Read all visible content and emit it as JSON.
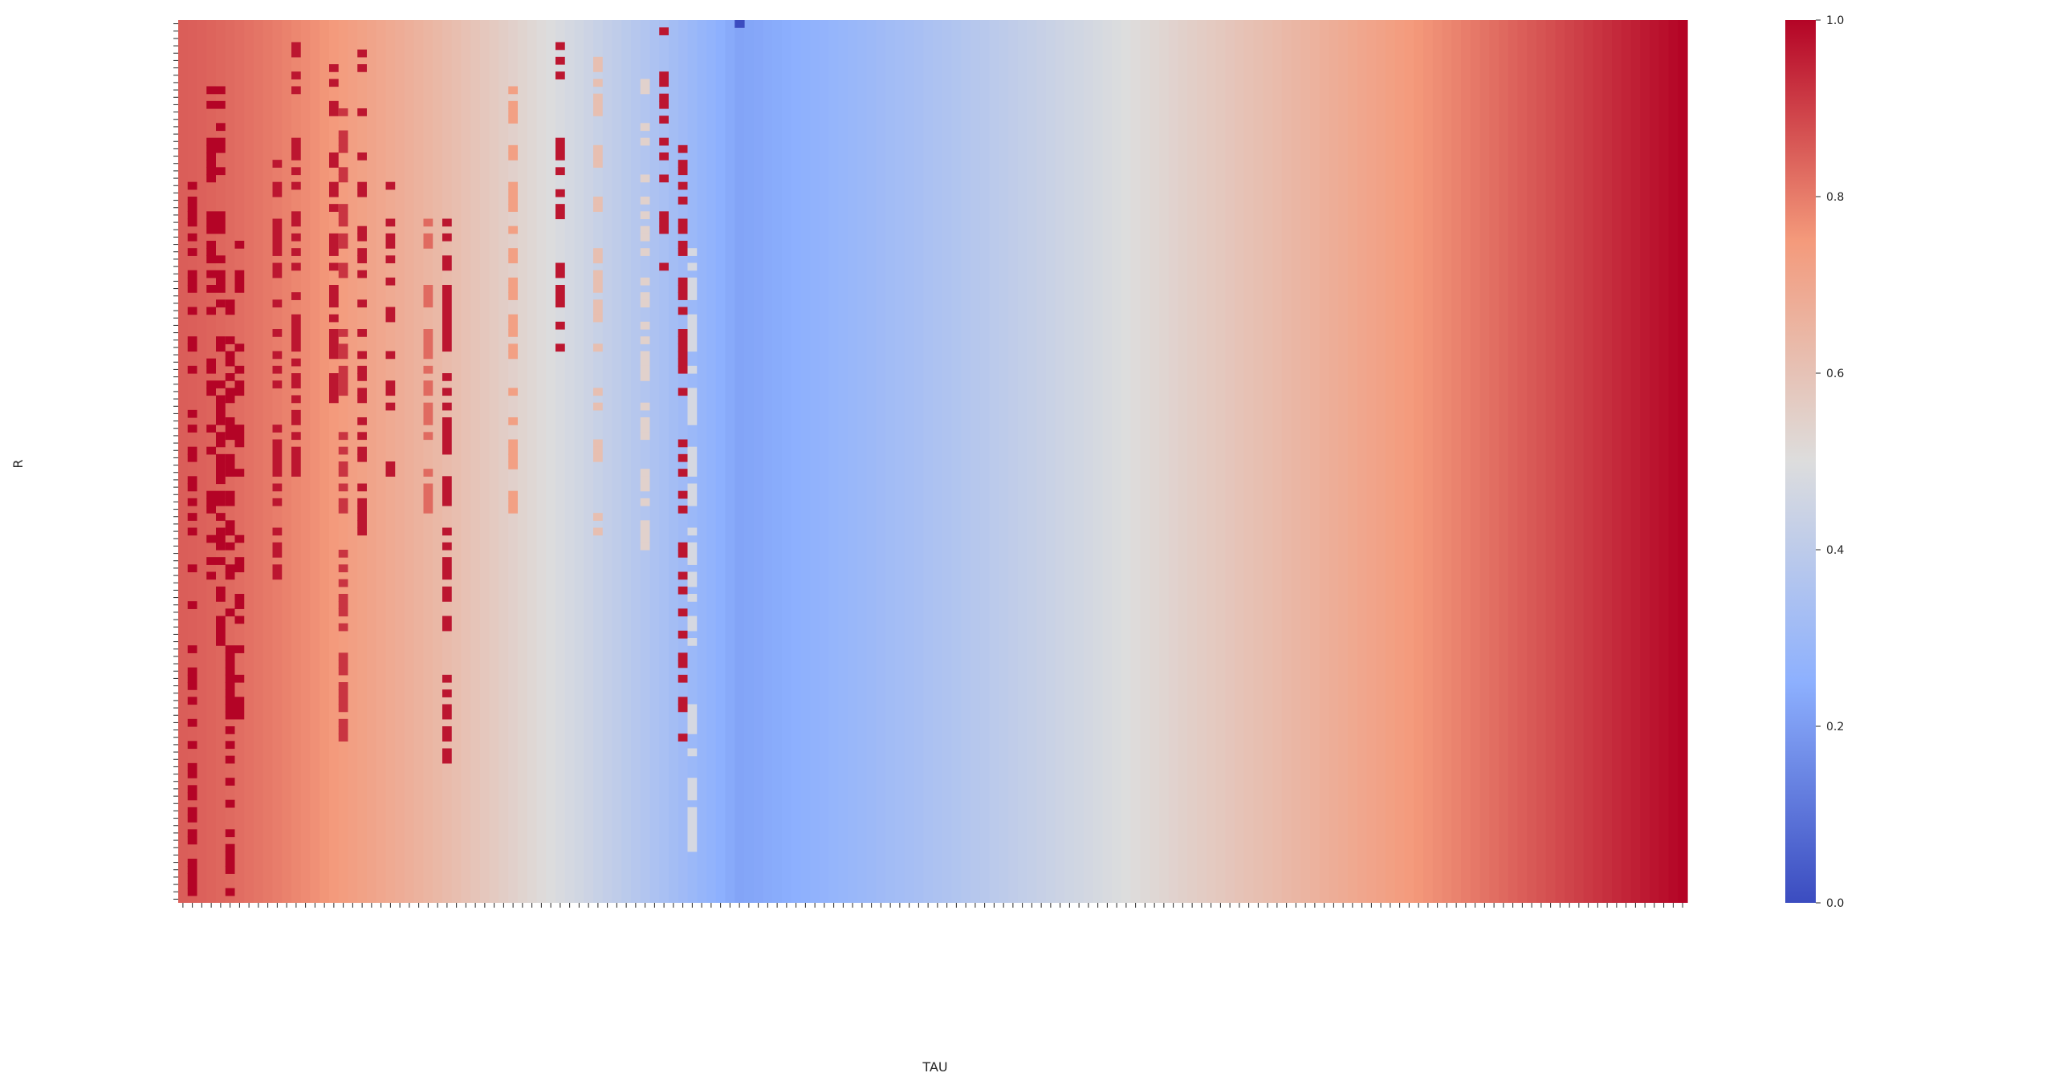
{
  "chart_data": {
    "type": "heatmap",
    "title": "",
    "xlabel": "TAU",
    "ylabel": "R",
    "colormap": "coolwarm",
    "colorbar": {
      "min": 0.0,
      "max": 1.0,
      "ticks": [
        0.0,
        0.2,
        0.4,
        0.6,
        0.8,
        1.0
      ],
      "tick_labels": [
        "0.0",
        "0.2",
        "0.4",
        "0.6",
        "0.8",
        "1.0"
      ],
      "placement": "right"
    },
    "grid": false,
    "x_tick_labels_legible": false,
    "y_tick_labels_legible": false,
    "column_profile": {
      "description_note": "",
      "tau_columns": 160,
      "r_rows": 120,
      "left_edge_value": 0.85,
      "minimum_value": 0.22,
      "minimum_column_fraction": 0.37,
      "right_edge_value": 1.0,
      "minimum_cell_value": 0.0
    },
    "colors": {
      "cold": "#3b4cc0",
      "neutral": "#dddddd",
      "hot": "#b40426"
    }
  }
}
